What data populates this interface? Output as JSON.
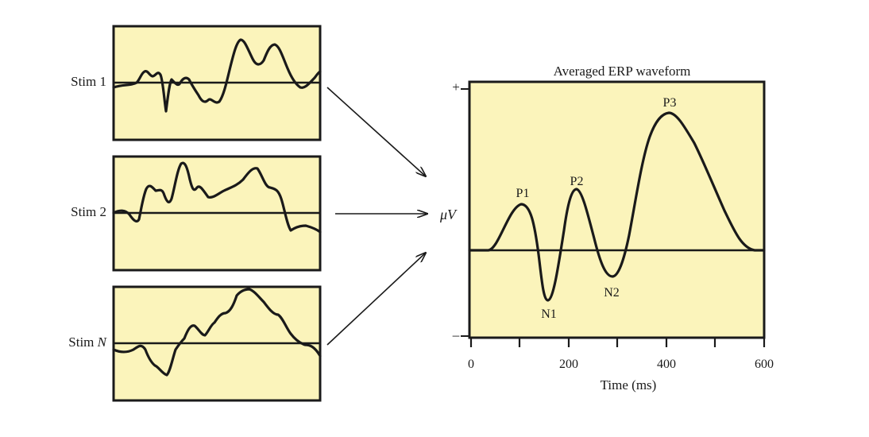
{
  "colors": {
    "panel_fill": "#fbf4bb",
    "ink": "#1a1a1a"
  },
  "stim_panels": [
    {
      "label": "Stim 1"
    },
    {
      "label": "Stim 2"
    },
    {
      "label_prefix": "Stim ",
      "label_var": "N"
    }
  ],
  "erp": {
    "title": "Averaged ERP waveform",
    "y_label_mu": "μ",
    "y_label_v": "V",
    "y_plus": "+",
    "y_minus": "–",
    "x_label": "Time (ms)",
    "x_ticks": [
      "0",
      "200",
      "400",
      "600"
    ],
    "peaks": [
      {
        "name": "P1",
        "time_ms": 105,
        "polarity": "positive",
        "amplitude": 0.55
      },
      {
        "name": "N1",
        "time_ms": 160,
        "polarity": "negative",
        "amplitude": -0.65
      },
      {
        "name": "P2",
        "time_ms": 220,
        "polarity": "positive",
        "amplitude": 0.75
      },
      {
        "name": "N2",
        "time_ms": 290,
        "polarity": "negative",
        "amplitude": -0.35
      },
      {
        "name": "P3",
        "time_ms": 405,
        "polarity": "positive",
        "amplitude": 1.65
      }
    ]
  }
}
